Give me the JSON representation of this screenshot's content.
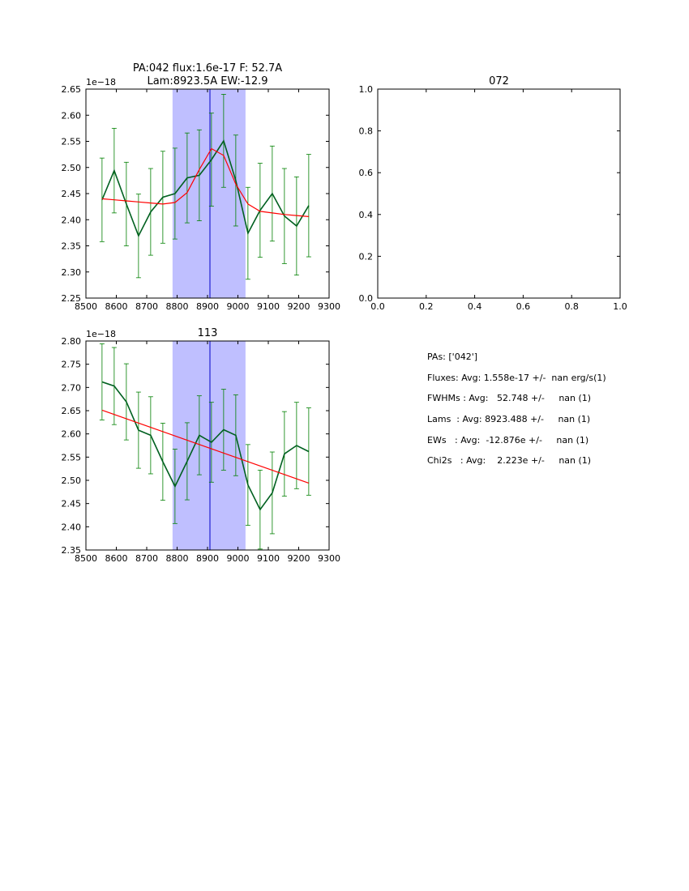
{
  "chart_data": [
    {
      "type": "line",
      "title": "PA:042 flux:1.6e-17 F: 52.7A\nLam:8923.5A EW:-12.9",
      "offset_label": "1e−18",
      "xlim": [
        8500,
        9300
      ],
      "ylim": [
        2.25,
        2.65
      ],
      "xticks": [
        "8500",
        "8600",
        "8700",
        "8800",
        "8900",
        "9000",
        "9100",
        "9200",
        "9300"
      ],
      "yticks": [
        "2.25",
        "2.30",
        "2.35",
        "2.40",
        "2.45",
        "2.50",
        "2.55",
        "2.60",
        "2.65"
      ],
      "shaded_span": [
        8785,
        9025
      ],
      "vline": 8908,
      "series": [
        {
          "name": "data",
          "color": "#006020",
          "x": [
            8553,
            8593,
            8633,
            8673,
            8713,
            8753,
            8793,
            8833,
            8873,
            8913,
            8953,
            8993,
            9033,
            9073,
            9113,
            9153,
            9193,
            9233
          ],
          "y": [
            2.438,
            2.494,
            2.43,
            2.369,
            2.415,
            2.443,
            2.45,
            2.48,
            2.485,
            2.515,
            2.551,
            2.475,
            2.374,
            2.418,
            2.45,
            2.407,
            2.388,
            2.427
          ],
          "err": [
            0.08,
            0.081,
            0.08,
            0.08,
            0.083,
            0.088,
            0.087,
            0.086,
            0.087,
            0.089,
            0.089,
            0.087,
            0.088,
            0.09,
            0.091,
            0.091,
            0.094,
            0.098
          ]
        },
        {
          "name": "fit",
          "color": "#ff0000",
          "x": [
            8553,
            8593,
            8633,
            8673,
            8713,
            8753,
            8793,
            8833,
            8873,
            8913,
            8953,
            8993,
            9033,
            9073,
            9113,
            9153,
            9193,
            9233
          ],
          "y": [
            2.44,
            2.438,
            2.436,
            2.434,
            2.432,
            2.43,
            2.433,
            2.452,
            2.496,
            2.536,
            2.523,
            2.468,
            2.43,
            2.416,
            2.413,
            2.41,
            2.408,
            2.406
          ]
        }
      ]
    },
    {
      "type": "line",
      "title": "072",
      "xlim": [
        0,
        1
      ],
      "ylim": [
        0,
        1
      ],
      "xticks": [
        "0.0",
        "0.2",
        "0.4",
        "0.6",
        "0.8",
        "1.0"
      ],
      "yticks": [
        "0.0",
        "0.2",
        "0.4",
        "0.6",
        "0.8",
        "1.0"
      ],
      "series": []
    },
    {
      "type": "line",
      "title": "113",
      "offset_label": "1e−18",
      "xlim": [
        8500,
        9300
      ],
      "ylim": [
        2.35,
        2.8
      ],
      "xticks": [
        "8500",
        "8600",
        "8700",
        "8800",
        "8900",
        "9000",
        "9100",
        "9200",
        "9300"
      ],
      "yticks": [
        "2.35",
        "2.40",
        "2.45",
        "2.50",
        "2.55",
        "2.60",
        "2.65",
        "2.70",
        "2.75",
        "2.80"
      ],
      "shaded_span": [
        8785,
        9025
      ],
      "vline": 8908,
      "series": [
        {
          "name": "data",
          "color": "#006020",
          "x": [
            8553,
            8593,
            8633,
            8673,
            8713,
            8753,
            8793,
            8833,
            8873,
            8913,
            8953,
            8993,
            9033,
            9073,
            9113,
            9153,
            9193,
            9233
          ],
          "y": [
            2.712,
            2.703,
            2.669,
            2.608,
            2.597,
            2.54,
            2.487,
            2.541,
            2.597,
            2.582,
            2.609,
            2.597,
            2.49,
            2.437,
            2.473,
            2.557,
            2.575,
            2.562
          ],
          "err": [
            0.082,
            0.083,
            0.082,
            0.082,
            0.083,
            0.083,
            0.08,
            0.083,
            0.085,
            0.086,
            0.087,
            0.087,
            0.087,
            0.085,
            0.088,
            0.091,
            0.093,
            0.094
          ]
        },
        {
          "name": "fit",
          "color": "#ff0000",
          "x": [
            8553,
            9233
          ],
          "y": [
            2.651,
            2.494
          ]
        }
      ]
    }
  ],
  "summary": {
    "pas": "PAs: ['042']",
    "fluxes": "Fluxes: Avg: 1.558e-17 +/-  nan erg/s(1)",
    "fwhms": "FWHMs : Avg:   52.748 +/-     nan (1)",
    "lams": "Lams  : Avg: 8923.488 +/-     nan (1)",
    "ews": "EWs   : Avg:  -12.876e +/-     nan (1)",
    "chi2s": "Chi2s   : Avg:    2.223e +/-     nan (1)"
  }
}
